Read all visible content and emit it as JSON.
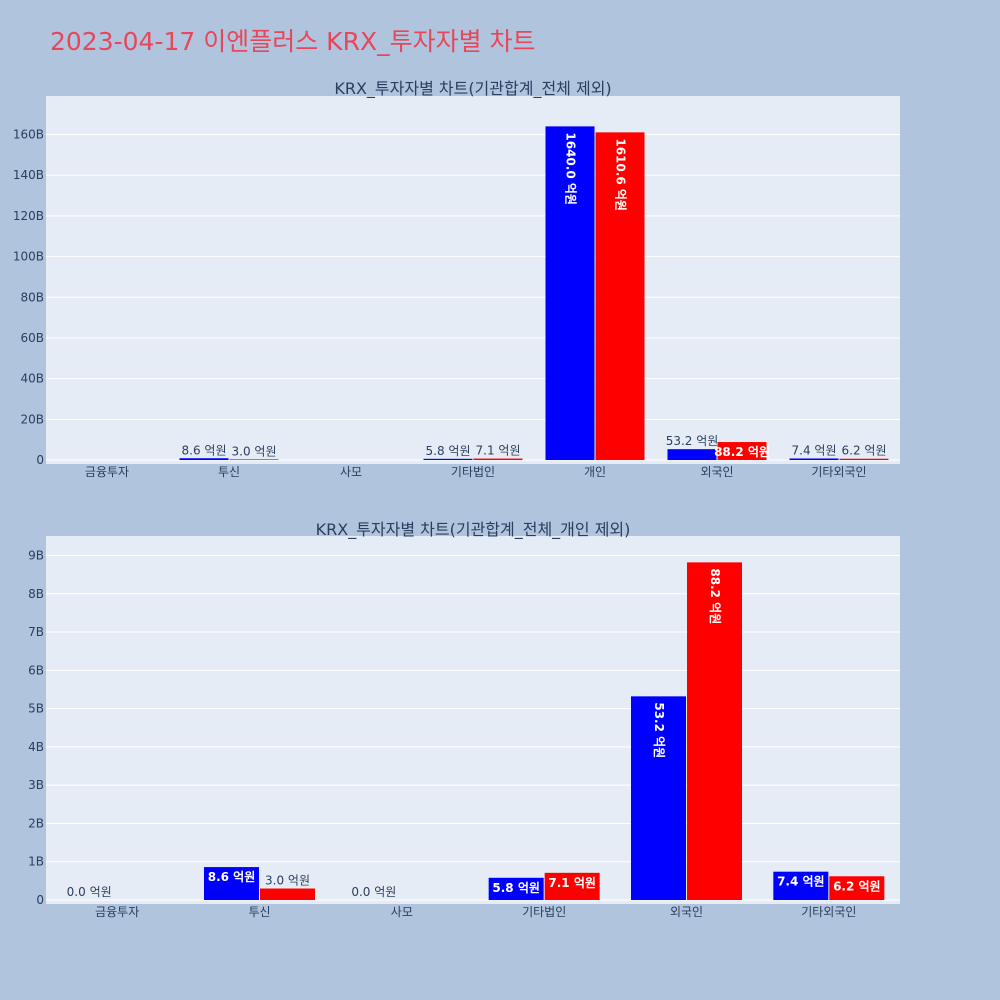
{
  "page_title": "2023-04-17 이엔플러스 KRX_투자자별 차트",
  "colors": {
    "background": "#b0c4de",
    "plot_bg": "#e5ecf6",
    "title": "#e8475b",
    "buy": "#0000ff",
    "sell": "#ff0000"
  },
  "chart_data": [
    {
      "type": "bar",
      "title": "KRX_투자자별 차트(기관합계_전체 제외)",
      "categories": [
        "금융투자",
        "투신",
        "사모",
        "기타법인",
        "개인",
        "외국인",
        "기타외국인"
      ],
      "ylim": [
        0,
        175
      ],
      "yticks": [
        0,
        20,
        40,
        60,
        80,
        100,
        120,
        140,
        160
      ],
      "ytick_labels": [
        "0",
        "20B",
        "40B",
        "60B",
        "80B",
        "100B",
        "120B",
        "140B",
        "160B"
      ],
      "series": [
        {
          "color": "#0000ff",
          "values": [
            null,
            0.86,
            null,
            0.58,
            164.0,
            5.32,
            0.74
          ],
          "labels": [
            "",
            "8.6 억원",
            "",
            "5.8 억원",
            "1640.0 억원",
            "53.2 억원",
            "7.4 억원"
          ]
        },
        {
          "color": "#ff0000",
          "values": [
            null,
            0.3,
            null,
            0.71,
            161.06,
            8.82,
            0.62
          ],
          "labels": [
            "",
            "3.0 억원",
            "",
            "7.1 억원",
            "1610.6 억원",
            "88.2 억원",
            "6.2 억원"
          ]
        }
      ],
      "grid": true
    },
    {
      "type": "bar",
      "title": "KRX_투자자별 차트(기관합계_전체_개인 제외)",
      "categories": [
        "금융투자",
        "투신",
        "사모",
        "기타법인",
        "외국인",
        "기타외국인"
      ],
      "ylim": [
        0,
        9.3
      ],
      "yticks": [
        0,
        1,
        2,
        3,
        4,
        5,
        6,
        7,
        8,
        9
      ],
      "ytick_labels": [
        "0",
        "1B",
        "2B",
        "3B",
        "4B",
        "5B",
        "6B",
        "7B",
        "8B",
        "9B"
      ],
      "series": [
        {
          "color": "#0000ff",
          "values": [
            0,
            0.86,
            0,
            0.58,
            5.32,
            0.74
          ],
          "labels": [
            "0.0 억원",
            "8.6 억원",
            "0.0 억원",
            "5.8 억원",
            "53.2 억원",
            "7.4 억원"
          ]
        },
        {
          "color": "#ff0000",
          "values": [
            null,
            0.3,
            null,
            0.71,
            8.82,
            0.62
          ],
          "labels": [
            "",
            "3.0 억원",
            "",
            "7.1 억원",
            "88.2 억원",
            "6.2 억원"
          ]
        }
      ],
      "grid": true
    }
  ]
}
